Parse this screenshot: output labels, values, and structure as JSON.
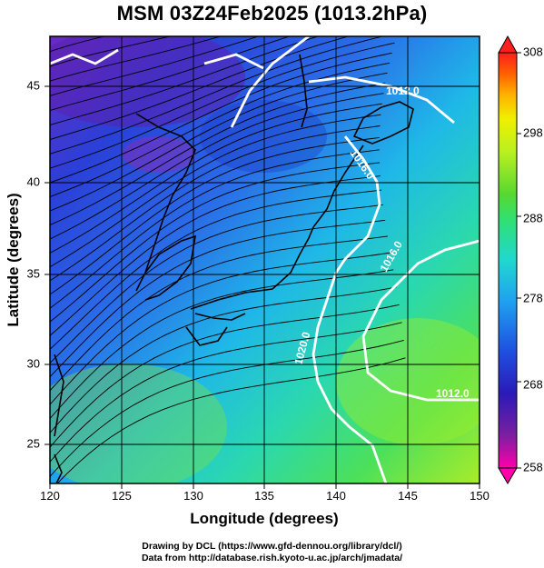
{
  "title": "MSM 03Z24Feb2025 (1013.2hPa)",
  "x_axis": {
    "label": "Longitude (degrees)",
    "range": [
      120,
      150
    ],
    "ticks": [
      "120",
      "125",
      "130",
      "135",
      "140",
      "145",
      "150"
    ]
  },
  "y_axis": {
    "label": "Latitude  (degrees)",
    "range": [
      22.5,
      47.6
    ],
    "ticks": [
      "25",
      "30",
      "35",
      "40",
      "45"
    ]
  },
  "colorbar": {
    "ticks": [
      "258",
      "268",
      "278",
      "288",
      "298",
      "308"
    ],
    "range": [
      258,
      308
    ],
    "colors": [
      "#ff00aa",
      "#7a1fa0",
      "#2a1ab8",
      "#1f4fe0",
      "#1fa0f0",
      "#20d8d0",
      "#30e070",
      "#58d830",
      "#b8f020",
      "#f0f000",
      "#ffb000",
      "#ff6000",
      "#ff1e1e"
    ]
  },
  "isobars": [
    "1012.0",
    "1016.0",
    "1016.0",
    "1020.0",
    "1012.0"
  ],
  "credits": [
    "Drawing by DCL (https://www.gfd-dennou.org/library/dcl/)",
    "Data from http://database.rish.kyoto-u.ac.jp/arch/jmadata/"
  ]
}
